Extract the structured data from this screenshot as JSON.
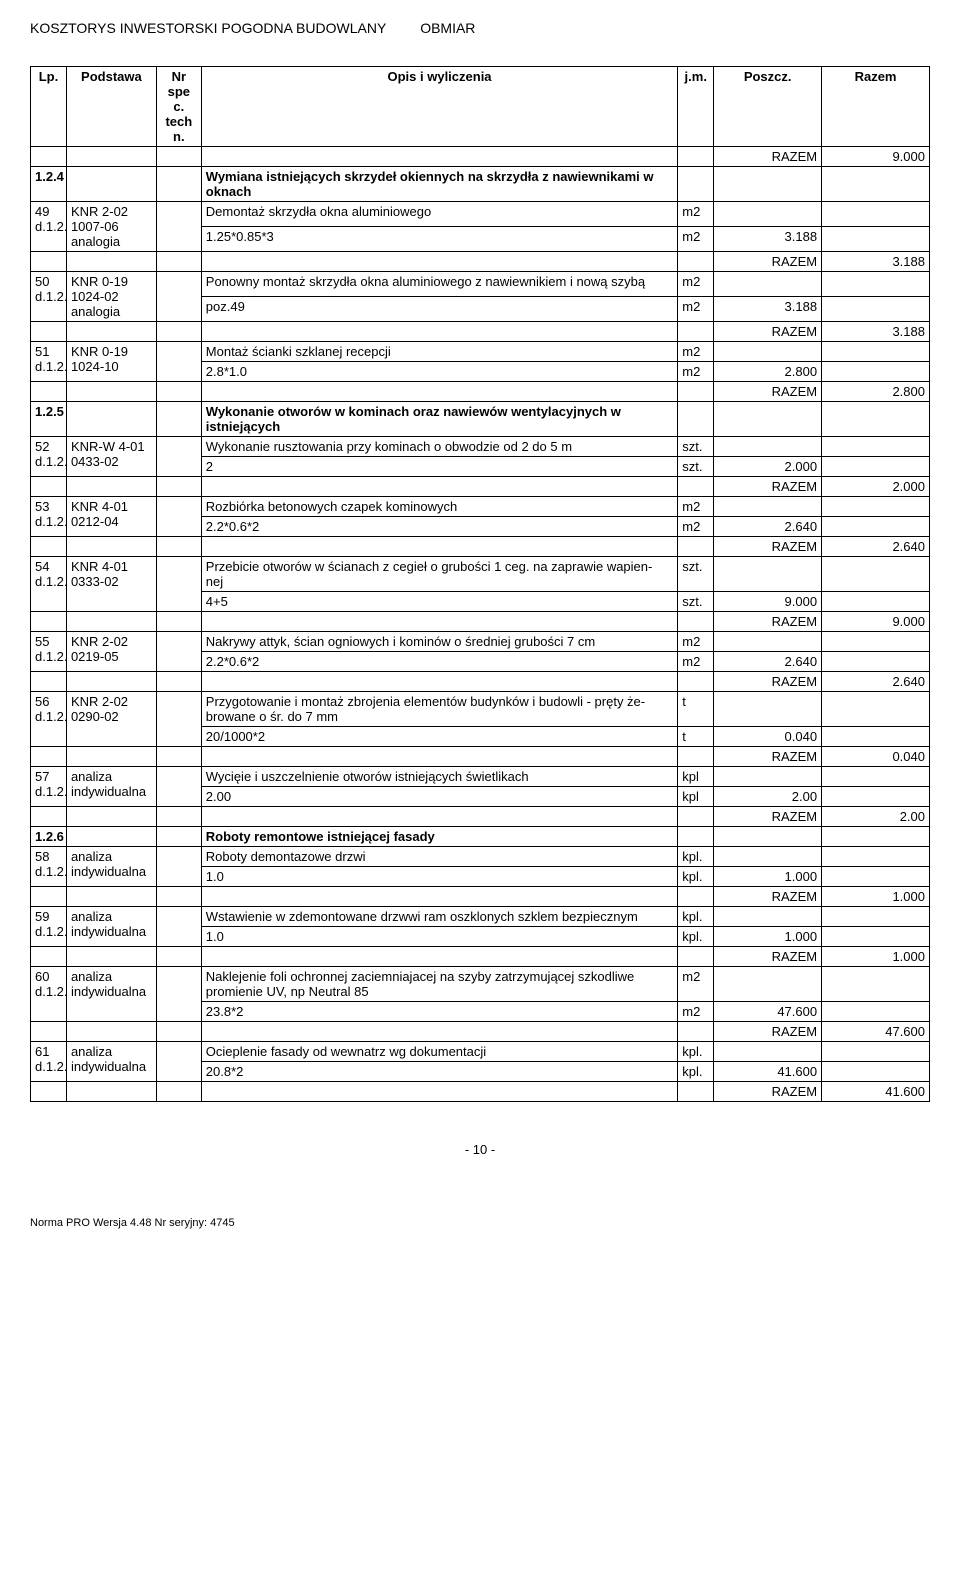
{
  "header": {
    "left": "KOSZTORYS INWESTORSKI  POGODNA BUDOWLANY",
    "right": "OBMIAR"
  },
  "columns": {
    "lp": "Lp.",
    "podstawa": "Podstawa",
    "spec": "Nr spe c. tech n.",
    "opis": "Opis i wyliczenia",
    "jm": "j.m.",
    "poszcz": "Poszcz.",
    "razem": "Razem"
  },
  "razem_label": "RAZEM",
  "top_razem": "9.000",
  "sections": [
    {
      "id": "1.2.4",
      "title": "Wymiana istniejących skrzydeł okiennych na skrzydła z nawiewnikami w oknach"
    }
  ],
  "rows": [
    {
      "lp": "49 d.1.2.4",
      "pod": "KNR 2-02 1007-06 analogia",
      "opis_lines": [
        {
          "text": "Demontaż skrzydła okna aluminiowego",
          "jm": "m2"
        },
        {
          "text": "1.25*0.85*3",
          "jm": "m2",
          "poszcz": "3.188"
        }
      ],
      "razem": "3.188"
    },
    {
      "lp": "50 d.1.2.4",
      "pod": "KNR 0-19 1024-02 analogia",
      "opis_lines": [
        {
          "text": "Ponowny montaż skrzydła okna aluminiowego z nawiewnikiem i nową szybą",
          "jm": "m2"
        },
        {
          "text": "poz.49",
          "jm": "m2",
          "poszcz": "3.188"
        }
      ],
      "razem": "3.188"
    },
    {
      "lp": "51 d.1.2.4",
      "pod": "KNR 0-19 1024-10",
      "opis_lines": [
        {
          "text": "Montaż ścianki szklanej recepcji",
          "jm": "m2"
        },
        {
          "text": "2.8*1.0",
          "jm": "m2",
          "poszcz": "2.800"
        }
      ],
      "razem": "2.800"
    },
    {
      "section_id": "1.2.5",
      "section_title": "Wykonanie otworów w kominach oraz nawiewów wentylacyjnych w istniejących"
    },
    {
      "lp": "52 d.1.2.5",
      "pod": "KNR-W 4-01 0433-02",
      "opis_lines": [
        {
          "text": "Wykonanie rusztowania przy kominach o obwodzie od 2 do 5 m",
          "jm": "szt."
        },
        {
          "text": "2",
          "jm": "szt.",
          "poszcz": "2.000"
        }
      ],
      "razem": "2.000"
    },
    {
      "lp": "53 d.1.2.5",
      "pod": "KNR 4-01 0212-04",
      "opis_lines": [
        {
          "text": "Rozbiórka betonowych czapek kominowych",
          "jm": "m2"
        },
        {
          "text": "2.2*0.6*2",
          "jm": "m2",
          "poszcz": "2.640"
        }
      ],
      "razem": "2.640"
    },
    {
      "lp": "54 d.1.2.5",
      "pod": "KNR 4-01 0333-02",
      "opis_lines": [
        {
          "text": "Przebicie otworów w ścianach z cegieł o grubości 1 ceg. na zaprawie wapien- nej",
          "jm": "szt."
        },
        {
          "text": "4+5",
          "jm": "szt.",
          "poszcz": "9.000"
        }
      ],
      "razem": "9.000"
    },
    {
      "lp": "55 d.1.2.5",
      "pod": "KNR 2-02 0219-05",
      "opis_lines": [
        {
          "text": "Nakrywy attyk, ścian ogniowych i kominów o średniej grubości 7 cm",
          "jm": "m2"
        },
        {
          "text": "2.2*0.6*2",
          "jm": "m2",
          "poszcz": "2.640"
        }
      ],
      "razem": "2.640"
    },
    {
      "lp": "56 d.1.2.5",
      "pod": "KNR 2-02 0290-02",
      "opis_lines": [
        {
          "text": "Przygotowanie i montaż zbrojenia elementów budynków i budowli - pręty że- browane o śr. do 7 mm",
          "jm": "t"
        },
        {
          "text": "20/1000*2",
          "jm": "t",
          "poszcz": "0.040"
        }
      ],
      "razem": "0.040"
    },
    {
      "lp": "57 d.1.2.5",
      "pod": "analiza indywidualna",
      "opis_lines": [
        {
          "text": "Wycięie i uszczelnienie otworów istniejących świetlikach",
          "jm": "kpl"
        },
        {
          "text": "2.00",
          "jm": "kpl",
          "poszcz": "2.00"
        }
      ],
      "razem": "2.00"
    },
    {
      "section_id": "1.2.6",
      "section_title": "Roboty remontowe istniejącej fasady"
    },
    {
      "lp": "58 d.1.2.6",
      "pod": "analiza indywidualna",
      "opis_lines": [
        {
          "text": "Roboty demontazowe drzwi",
          "jm": "kpl."
        },
        {
          "text": "1.0",
          "jm": "kpl.",
          "poszcz": "1.000"
        }
      ],
      "razem": "1.000"
    },
    {
      "lp": "59 d.1.2.6",
      "pod": "analiza indywidualna",
      "opis_lines": [
        {
          "text": "Wstawienie w zdemontowane drzwwi ram oszklonych szklem bezpiecznym",
          "jm": "kpl."
        },
        {
          "text": "1.0",
          "jm": "kpl.",
          "poszcz": "1.000"
        }
      ],
      "razem": "1.000"
    },
    {
      "lp": "60 d.1.2.6",
      "pod": "analiza indywidualna",
      "opis_lines": [
        {
          "text": "Naklejenie foli ochronnej zaciemniajacej na szyby zatrzymującej szkodliwe promienie UV, np Neutral 85",
          "jm": "m2"
        },
        {
          "text": "23.8*2",
          "jm": "m2",
          "poszcz": "47.600"
        }
      ],
      "razem": "47.600"
    },
    {
      "lp": "61 d.1.2.6",
      "pod": "analiza indywidualna",
      "opis_lines": [
        {
          "text": "Ocieplenie fasady od wewnatrz wg dokumentacji",
          "jm": "kpl."
        },
        {
          "text": "20.8*2",
          "jm": "kpl.",
          "poszcz": "41.600"
        }
      ],
      "razem": "41.600"
    }
  ],
  "page_number": "- 10 -",
  "footer": "Norma PRO Wersja 4.48 Nr seryjny: 4745"
}
